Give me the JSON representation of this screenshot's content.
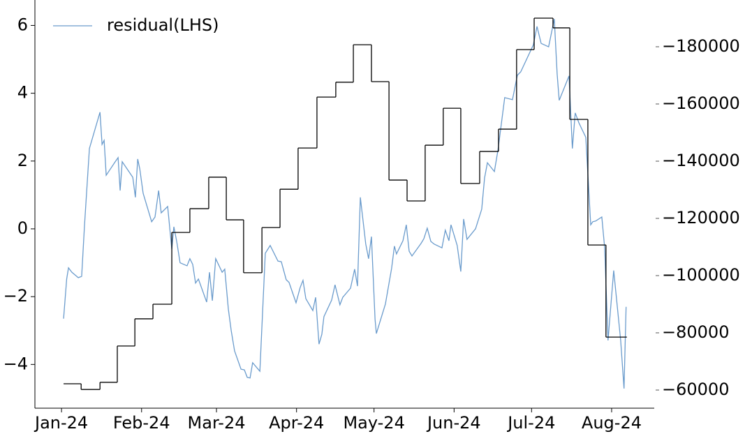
{
  "chart_data": {
    "type": "line",
    "legend": "upper left",
    "xlim": [
      -10.3,
      229.5
    ],
    "xticks": [
      {
        "value": 0,
        "label": "Jan-24"
      },
      {
        "value": 31,
        "label": "Feb-24"
      },
      {
        "value": 60,
        "label": "Mar-24"
      },
      {
        "value": 91,
        "label": "Apr-24"
      },
      {
        "value": 121,
        "label": "May-24"
      },
      {
        "value": 152,
        "label": "Jun-24"
      },
      {
        "value": 182,
        "label": "Jul-24"
      },
      {
        "value": 213,
        "label": "Aug-24"
      }
    ],
    "ylim": [
      -5.29,
      6.75
    ],
    "yticks": [
      {
        "value": -4,
        "label": "−4"
      },
      {
        "value": -2,
        "label": "−2"
      },
      0,
      2,
      4,
      6
    ],
    "y2lim": [
      -53660,
      -196340
    ],
    "y2ticks": [
      {
        "value": -60000,
        "label": "−60000"
      },
      {
        "value": -80000,
        "label": "−80000"
      },
      {
        "value": -100000,
        "label": "−100000"
      },
      {
        "value": -120000,
        "label": "−120000"
      },
      {
        "value": -140000,
        "label": "−140000"
      },
      {
        "value": -160000,
        "label": "−160000"
      },
      {
        "value": -180000,
        "label": "−180000"
      }
    ],
    "series": [
      {
        "name": "residual(LHS)",
        "color": "#6a9bcc",
        "x": [
          0.8,
          2,
          2.7,
          4,
          6.5,
          7.8,
          8.9,
          10.8,
          14.9,
          15.7,
          16.5,
          17.3,
          20.8,
          21.9,
          22.7,
          23.5,
          27.6,
          28.6,
          29.5,
          30.3,
          31.6,
          34.9,
          36.2,
          37.6,
          38.6,
          41.1,
          42.7,
          43.5,
          44.6,
          45.9,
          48.6,
          49.7,
          50.8,
          51.9,
          53,
          56.2,
          57.3,
          58.4,
          59.7,
          62.2,
          63.2,
          64.6,
          65.7,
          67,
          69.5,
          70.8,
          71.9,
          73,
          74,
          76.8,
          78.9,
          80.8,
          83.8,
          85.1,
          87,
          88.1,
          90.8,
          92.4,
          93.5,
          94.6,
          97.3,
          98.4,
          99.7,
          100.8,
          101.6,
          104.6,
          105.9,
          107.8,
          108.9,
          111.9,
          113.5,
          114.6,
          115.7,
          117.8,
          118.9,
          120,
          121.4,
          121.9,
          125.4,
          127.8,
          128.9,
          129.7,
          132.2,
          133.5,
          134.6,
          135.7,
          139.2,
          140.3,
          141.6,
          143,
          144.3,
          147.3,
          148.6,
          150,
          150.8,
          153.2,
          154.6,
          155.7,
          157,
          160.3,
          162.7,
          163.8,
          164.9,
          167.6,
          169,
          171.6,
          174.6,
          176.5,
          177.8,
          182.7,
          184.1,
          185.7,
          188.6,
          190.8,
          191.9,
          192.7,
          196.5,
          197.8,
          198.9,
          200.3,
          203,
          204.9,
          205.7,
          206.8,
          209.2,
          210.3,
          211.6,
          213.8,
          216.5,
          217.8,
          218.6
        ],
        "values": [
          -2.65,
          -1.48,
          -1.15,
          -1.28,
          -1.44,
          -1.4,
          0.1,
          2.37,
          3.44,
          2.49,
          2.61,
          1.58,
          1.98,
          2.1,
          1.13,
          1.98,
          1.52,
          0.93,
          2.06,
          1.77,
          1.05,
          0.21,
          0.35,
          1.13,
          0.47,
          0.66,
          -0.6,
          0.06,
          -0.37,
          -1.0,
          -1.09,
          -0.88,
          -1.05,
          -1.6,
          -1.48,
          -2.16,
          -1.28,
          -2.12,
          -0.88,
          -1.28,
          -1.19,
          -2.37,
          -3.0,
          -3.6,
          -4.14,
          -4.16,
          -4.38,
          -4.4,
          -3.95,
          -4.2,
          -0.72,
          -0.49,
          -0.95,
          -0.97,
          -1.5,
          -1.58,
          -2.18,
          -1.73,
          -1.52,
          -2.06,
          -2.41,
          -2.02,
          -3.4,
          -3.11,
          -2.59,
          -2.1,
          -1.65,
          -2.24,
          -2.02,
          -1.75,
          -1.19,
          -1.69,
          0.93,
          -0.45,
          -0.88,
          -0.23,
          -2.67,
          -3.09,
          -2.22,
          -1.17,
          -0.51,
          -0.74,
          -0.35,
          0.12,
          -0.66,
          -0.8,
          -0.43,
          -0.29,
          0.02,
          -0.37,
          -0.45,
          -0.56,
          -0.04,
          -0.35,
          0.12,
          -0.49,
          -1.26,
          0.29,
          -0.31,
          0.0,
          0.58,
          1.5,
          1.95,
          1.69,
          2.33,
          3.87,
          3.81,
          4.53,
          4.63,
          5.43,
          5.97,
          5.47,
          5.37,
          6.19,
          4.57,
          3.79,
          4.51,
          2.37,
          3.42,
          3.13,
          2.7,
          0.12,
          0.21,
          0.23,
          0.35,
          -0.56,
          -3.29,
          -1.23,
          -3.29,
          -4.71,
          -2.3
        ]
      },
      {
        "color": "#000000",
        "axis": "y2",
        "step": "post",
        "x": [
          0.8,
          7.6,
          14.9,
          21.6,
          28.4,
          35.4,
          42.7,
          49.7,
          57,
          63.8,
          70.5,
          77.6,
          84.6,
          91.6,
          98.9,
          106.2,
          113,
          120,
          126.8,
          133.8,
          140.8,
          147.8,
          154.6,
          161.9,
          169.2,
          176.2,
          183,
          190.3,
          196.8,
          203.8,
          210.8,
          218.9
        ],
        "values": [
          -62200,
          -60200,
          -62700,
          -75400,
          -84900,
          -90000,
          -115100,
          -123400,
          -134400,
          -119500,
          -101000,
          -116800,
          -130200,
          -144600,
          -162400,
          -167600,
          -180700,
          -167800,
          -133400,
          -126100,
          -145600,
          -158500,
          -132200,
          -143400,
          -151200,
          -179000,
          -190000,
          -186600,
          -154600,
          -110700,
          -78500,
          -78500
        ]
      }
    ]
  }
}
